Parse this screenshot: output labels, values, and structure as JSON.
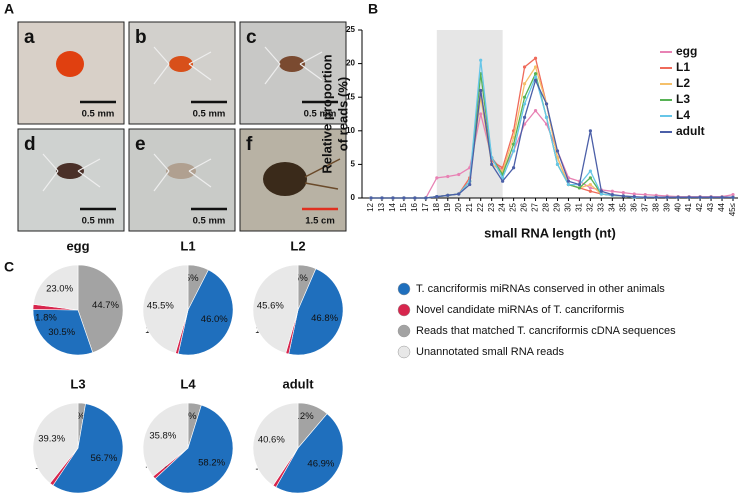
{
  "panel_labels": [
    "A",
    "B",
    "C"
  ],
  "photos": [
    {
      "label": "a",
      "scale": "0.5 mm"
    },
    {
      "label": "b",
      "scale": "0.5 mm"
    },
    {
      "label": "c",
      "scale": "0.5 mm"
    },
    {
      "label": "d",
      "scale": "0.5 mm"
    },
    {
      "label": "e",
      "scale": "0.5 mm"
    },
    {
      "label": "f",
      "scale": "1.5 cm"
    }
  ],
  "chart_data": [
    {
      "type": "line",
      "xlabel": "small RNA length (nt)",
      "ylabel": [
        "Relative proportion",
        "of reads (%)"
      ],
      "categories": [
        "12",
        "13",
        "14",
        "15",
        "16",
        "17",
        "18",
        "19",
        "20",
        "21",
        "22",
        "23",
        "24",
        "25",
        "26",
        "27",
        "28",
        "29",
        "30",
        "31",
        "32",
        "33",
        "34",
        "35",
        "36",
        "37",
        "38",
        "39",
        "40",
        "41",
        "42",
        "43",
        "44",
        "45≤"
      ],
      "shaded_range": [
        "18",
        "24"
      ],
      "ylim": [
        0,
        25
      ],
      "yticks": [
        0,
        5,
        10,
        15,
        20,
        25
      ],
      "legend": "upper right",
      "series": [
        {
          "name": "egg",
          "color": "#e882b4",
          "values": [
            0,
            0,
            0,
            0,
            0,
            0,
            3,
            3.2,
            3.5,
            4.5,
            12.5,
            6,
            4,
            7,
            11,
            13,
            11,
            7,
            3,
            2.5,
            1.5,
            1.2,
            1,
            0.8,
            0.6,
            0.5,
            0.4,
            0.3,
            0.2,
            0.2,
            0.2,
            0.2,
            0.2,
            0.5
          ]
        },
        {
          "name": "L1",
          "color": "#ef6a5a",
          "values": [
            0,
            0,
            0,
            0,
            0,
            0,
            0.2,
            0.4,
            0.6,
            3,
            16,
            5.5,
            4.5,
            10,
            19.5,
            20.8,
            14,
            6,
            2,
            1.5,
            1,
            0.6,
            0.4,
            0.3,
            0.1,
            0.1,
            0.1,
            0.1,
            0.1,
            0.1,
            0.1,
            0.1,
            0.1,
            0.1
          ]
        },
        {
          "name": "L2",
          "color": "#f5c06a",
          "values": [
            0,
            0,
            0,
            0,
            0,
            0,
            0.2,
            0.4,
            0.6,
            2.5,
            15,
            5,
            4,
            9,
            17,
            19.5,
            14,
            6,
            2,
            1.5,
            2,
            0.6,
            0.4,
            0.3,
            0.1,
            0.1,
            0.1,
            0.1,
            0.1,
            0.1,
            0.1,
            0.1,
            0.1,
            0.1
          ]
        },
        {
          "name": "L3",
          "color": "#57b255",
          "values": [
            0,
            0,
            0,
            0,
            0,
            0,
            0.2,
            0.4,
            0.6,
            2.5,
            18.5,
            6,
            3.5,
            8,
            15,
            18.5,
            12,
            5,
            2,
            1.5,
            3,
            0.6,
            0.4,
            0.3,
            0.1,
            0.1,
            0.1,
            0.1,
            0.1,
            0.1,
            0.1,
            0.1,
            0.1,
            0.1
          ]
        },
        {
          "name": "L4",
          "color": "#67c6e8",
          "values": [
            0,
            0,
            0,
            0,
            0,
            0,
            0.2,
            0.4,
            0.6,
            2.5,
            20.5,
            6,
            3,
            7,
            14,
            18,
            12,
            5,
            2,
            2,
            4,
            0.6,
            0.4,
            0.3,
            0.1,
            0.1,
            0.1,
            0.1,
            0.1,
            0.1,
            0.1,
            0.1,
            0.1,
            0.1
          ]
        },
        {
          "name": "adult",
          "color": "#4b5fa8",
          "values": [
            0,
            0,
            0,
            0,
            0,
            0,
            0.2,
            0.4,
            0.6,
            2,
            16,
            5,
            2.5,
            4.5,
            12,
            17.5,
            14,
            7,
            2.5,
            2,
            10,
            1,
            0.5,
            0.3,
            0.2,
            0.1,
            0.1,
            0.1,
            0.1,
            0.1,
            0.1,
            0.1,
            0.1,
            0.1
          ]
        }
      ]
    },
    {
      "type": "pie",
      "categories": [
        "T. cancriformis miRNAs conserved in other animals",
        "Novel candidate miRNAs of T. cancriformis",
        "Reads that matched T. cancriformis cDNA sequences",
        "Unannotated small RNA reads"
      ],
      "colors": [
        "#1f6fbd",
        "#d7264d",
        "#a3a3a3",
        "#e8e8e8"
      ],
      "pies": [
        {
          "name": "egg",
          "values": [
            30.5,
            1.8,
            44.7,
            23.0
          ],
          "value_labels": [
            "30.5%",
            "1.8%",
            "44.7%",
            "23.0%"
          ]
        },
        {
          "name": "L1",
          "values": [
            46.0,
            1.0,
            7.5,
            45.5
          ],
          "value_labels": [
            "46.0%",
            "1.0%",
            "7.5%",
            "45.5%"
          ]
        },
        {
          "name": "L2",
          "values": [
            46.8,
            1.1,
            6.5,
            45.6
          ],
          "value_labels": [
            "46.8%",
            "1.1%",
            "6.5%",
            "45.6%"
          ]
        },
        {
          "name": "L3",
          "values": [
            56.7,
            1.3,
            2.7,
            39.3
          ],
          "value_labels": [
            "56.7%",
            "1.3%",
            "2.7%",
            "39.3%"
          ]
        },
        {
          "name": "L4",
          "values": [
            58.2,
            1.1,
            4.8,
            35.8
          ],
          "value_labels": [
            "58.2%",
            "1.1%",
            "4.8%",
            "35.8%"
          ]
        },
        {
          "name": "adult",
          "values": [
            46.9,
            1.2,
            11.2,
            40.6
          ],
          "value_labels": [
            "46.9%",
            "1.2%",
            "11.2%",
            "40.6%"
          ]
        }
      ]
    }
  ]
}
